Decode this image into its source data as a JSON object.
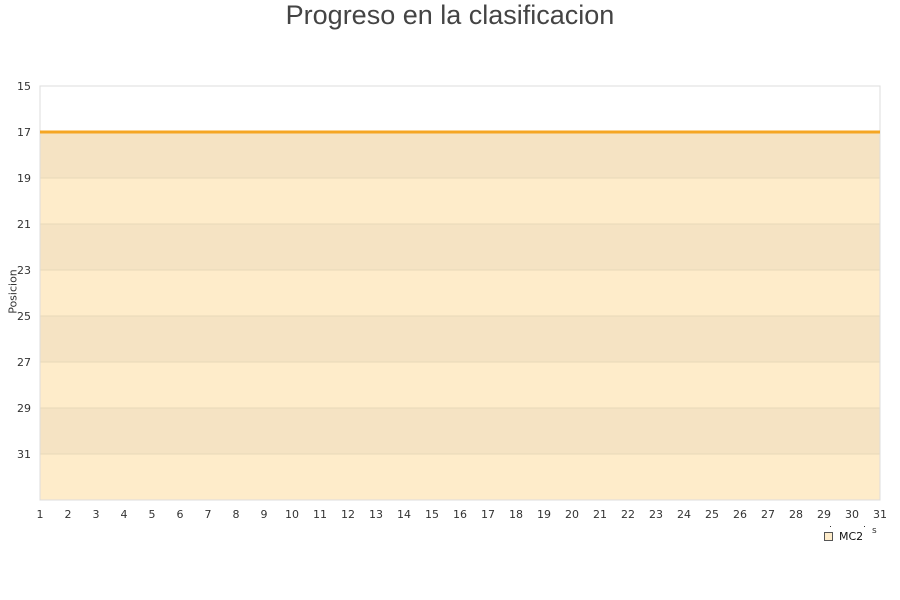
{
  "chart_data": {
    "type": "area",
    "title": "Progreso en la clasificacion",
    "ylabel": "Posicion",
    "xlabel": "s",
    "x": [
      1,
      2,
      3,
      4,
      5,
      6,
      7,
      8,
      9,
      10,
      11,
      12,
      13,
      14,
      15,
      16,
      17,
      18,
      19,
      20,
      21,
      22,
      23,
      24,
      25,
      26,
      27,
      28,
      29,
      30,
      31
    ],
    "ylim": [
      15,
      33
    ],
    "y_inverted": true,
    "yticks": [
      15,
      17,
      19,
      21,
      23,
      25,
      27,
      29,
      31
    ],
    "grid": true,
    "legend_position": "bottom-right",
    "series": [
      {
        "name": "MC2",
        "values": [
          17,
          17,
          17,
          17,
          17,
          17,
          17,
          17,
          17,
          17,
          17,
          17,
          17,
          17,
          17,
          17,
          17,
          17,
          17,
          17,
          17,
          17,
          17,
          17,
          17,
          17,
          17,
          17,
          17,
          17,
          17
        ],
        "line_color": "#f5a623",
        "fill_color": "#feecca"
      }
    ],
    "band_colors": [
      "#f5e3c3",
      "#feecca"
    ]
  }
}
